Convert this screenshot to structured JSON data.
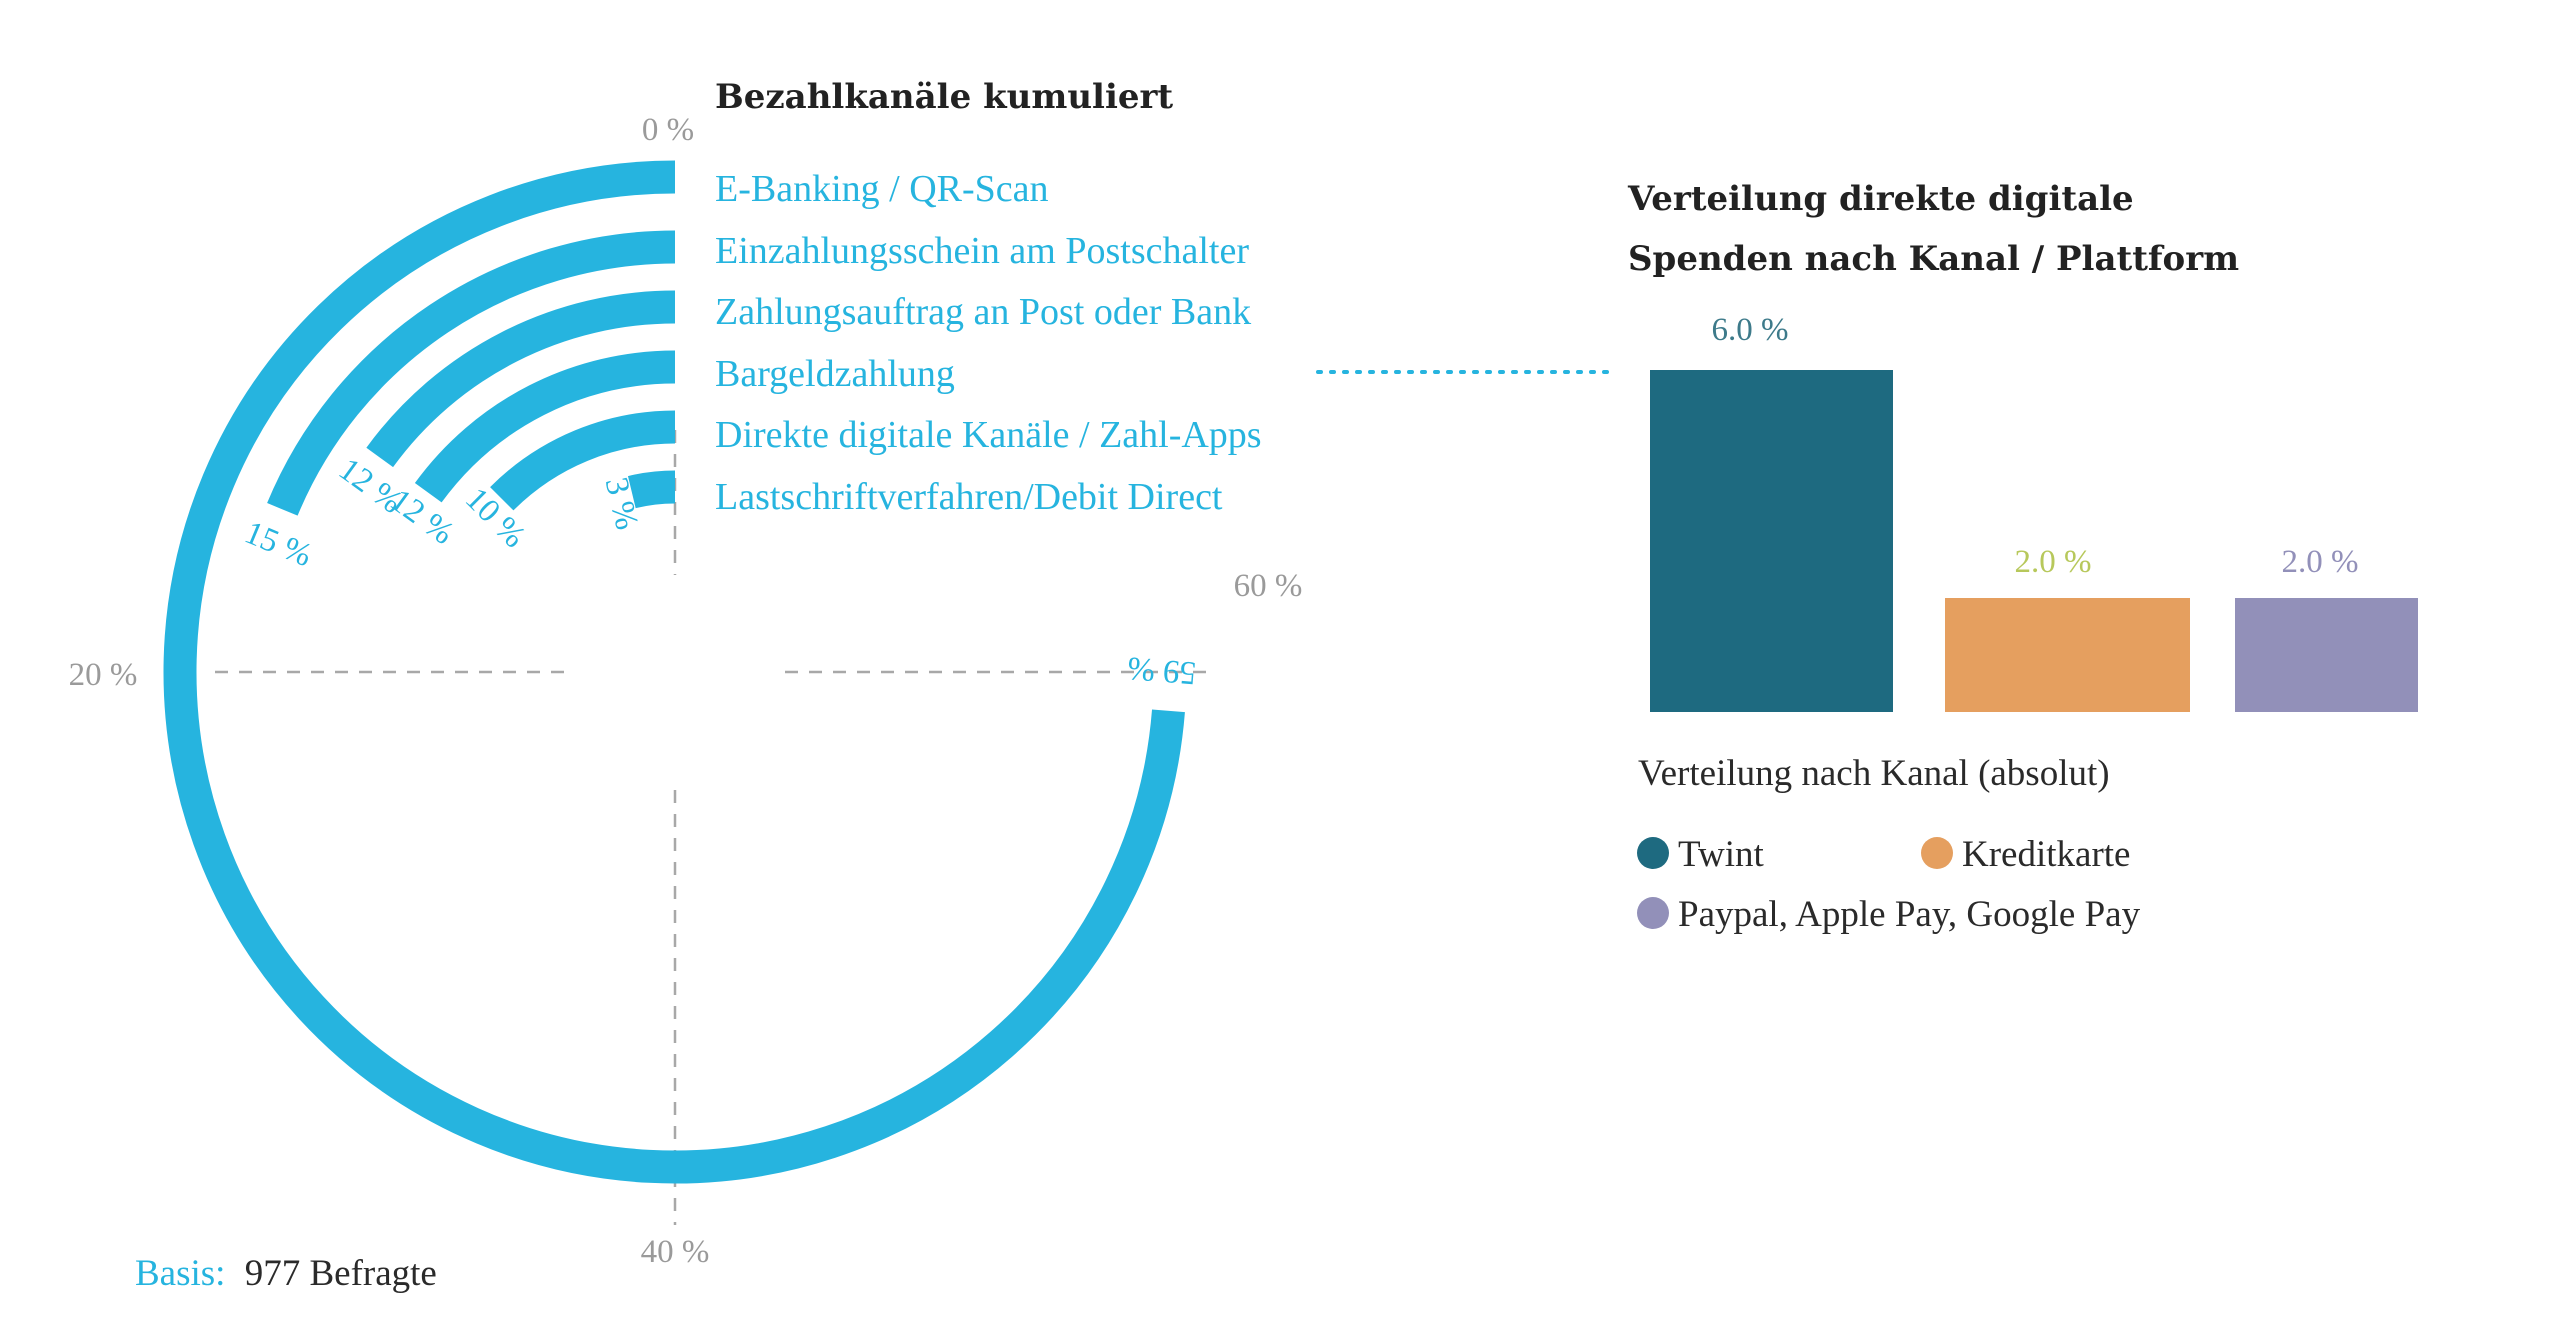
{
  "colors": {
    "radial": "#26b4df",
    "twint": "#1e6a80",
    "kreditkarte": "#e59f5f",
    "paypal": "#9290b9",
    "tick": "#9a9a9a",
    "grid": "#a8a8a8",
    "label_twint": "#3d7a8a",
    "label_kreditkarte": "#b7c85b",
    "label_paypal": "#9290b9"
  },
  "chart_data": [
    {
      "type": "radial-bar",
      "title": "Bezahlkanäle kumuliert",
      "axis_max_percent": 80,
      "axis_ticks": [
        {
          "value": 0,
          "label": "0 %"
        },
        {
          "value": 20,
          "label": "20 %"
        },
        {
          "value": 40,
          "label": "40 %"
        },
        {
          "value": 60,
          "label": "60 %"
        }
      ],
      "categories": [
        "E-Banking / QR-Scan",
        "Einzahlungsschein am Postschalter",
        "Zahlungsauftrag an Post oder Bank",
        "Bargeldzahlung",
        "Direkte digitale Kanäle / Zahl-Apps",
        "Lastschriftverfahren/Debit Direct"
      ],
      "values": [
        59,
        15,
        12,
        12,
        10,
        3
      ],
      "value_labels": [
        "59 %",
        "15 %",
        "12 %",
        "12 %",
        "10 %",
        "3 %"
      ]
    },
    {
      "type": "bar",
      "title": "Verteilung direkte digitale Spenden nach Kanal / Plattform",
      "title_lines": [
        "Verteilung direkte digitale",
        "Spenden nach Kanal / Plattform"
      ],
      "categories": [
        "Twint",
        "Kreditkarte",
        "Paypal, Apple Pay, Google Pay"
      ],
      "values": [
        6.0,
        2.0,
        2.0
      ],
      "value_labels": [
        "6.0 %",
        "2.0 %",
        "2.0 %"
      ],
      "ylim": [
        0,
        6.0
      ],
      "legend_title": "Verteilung nach Kanal (absolut)",
      "legend": [
        "Twint",
        "Kreditkarte",
        "Paypal, Apple Pay, Google Pay"
      ]
    }
  ],
  "footer": {
    "basis_label": "Basis:",
    "basis_value": "977 Befragte"
  }
}
